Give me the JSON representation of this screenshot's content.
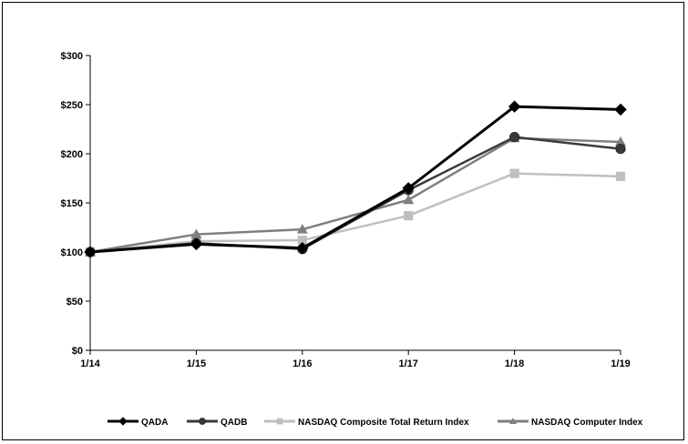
{
  "chart_data": {
    "type": "line",
    "title": "",
    "xlabel": "",
    "ylabel": "",
    "categories": [
      "1/14",
      "1/15",
      "1/16",
      "1/17",
      "1/18",
      "1/19"
    ],
    "ylim": [
      0,
      300
    ],
    "yticks": [
      0,
      50,
      100,
      150,
      200,
      250,
      300
    ],
    "ytick_labels": [
      "$0",
      "$50",
      "$100",
      "$150",
      "$200",
      "$250",
      "$300"
    ],
    "grid": false,
    "legend_position": "bottom",
    "series": [
      {
        "name": "QADA",
        "values": [
          100,
          108,
          104,
          165,
          248,
          245
        ],
        "color": "#000000",
        "marker": "diamond"
      },
      {
        "name": "QADB",
        "values": [
          100,
          109,
          103,
          163,
          217,
          205
        ],
        "color": "#3a3a3a",
        "marker": "circle"
      },
      {
        "name": "NASDAQ Composite Total Return Index",
        "values": [
          100,
          111,
          112,
          137,
          180,
          177
        ],
        "color": "#bfbfbf",
        "marker": "square"
      },
      {
        "name": "NASDAQ Computer Index",
        "values": [
          100,
          118,
          123,
          153,
          216,
          212
        ],
        "color": "#7f7f7f",
        "marker": "triangle"
      }
    ]
  }
}
